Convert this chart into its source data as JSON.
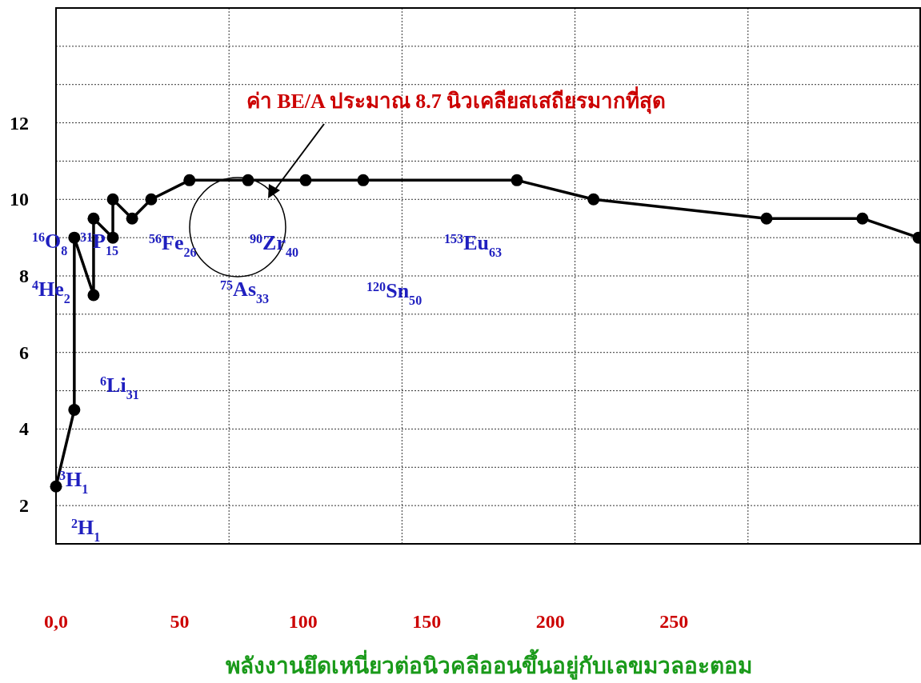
{
  "chart_data": {
    "type": "line",
    "xlabel": "พลังงานยึดเหนี่ยวต่อนิวคลีออนขึ้นอยู่กับเลขมวลอะตอม",
    "xlim": [
      0,
      350
    ],
    "ylim": [
      1,
      15
    ],
    "xticks": [
      {
        "value": 0,
        "label": "0,0"
      },
      50,
      100,
      150,
      200,
      250,
      {
        "value": 70,
        "label": null
      },
      {
        "value": 140,
        "label": null
      },
      {
        "value": 210,
        "label": null
      },
      {
        "value": 280,
        "label": null
      }
    ],
    "yticks": [
      2,
      {
        "value": 3,
        "label": null
      },
      4,
      {
        "value": 5,
        "label": null
      },
      6,
      {
        "value": 7,
        "label": null
      },
      8,
      {
        "value": 9,
        "label": null
      },
      10,
      {
        "value": 11,
        "label": null
      },
      12,
      {
        "value": 13,
        "label": null
      },
      {
        "value": 14,
        "label": null
      }
    ],
    "grid": true,
    "marker": "circle",
    "line_style": "solid",
    "series": [
      {
        "color": "#000000",
        "x": [
          0,
          7.4,
          7.4,
          15.2,
          15.2,
          23,
          23,
          30.8,
          38.5,
          54,
          77.7,
          101,
          124.3,
          186.5,
          217.5,
          287.5,
          326.3,
          349
        ],
        "values": [
          2.5,
          4.5,
          9.0,
          7.5,
          9.5,
          9.0,
          10.0,
          9.5,
          10.0,
          10.5,
          10.5,
          10.5,
          10.5,
          10.5,
          10.0,
          9.5,
          9.5,
          9.0
        ]
      }
    ],
    "annotations": [
      "ค่า BE/A ประมาณ 8.7  นิวเคลียสเสถียรมากที่สุด",
      "$^{16}$O$_{8}$",
      "$^{31}$P$_{15}$",
      "$^{4}$He$_{2}$",
      "$^{56}$Fe$_{26}$",
      "$^{90}$Zr$_{40}$",
      "$^{75}$As$_{33}$",
      "$^{120}$Sn$_{50}$",
      "$^{153}$Eu$_{63}$",
      "$^{6}$Li$_{31}$",
      "$^{3}$H$_{1}$",
      "$^{2}$H$_{1}$"
    ]
  }
}
